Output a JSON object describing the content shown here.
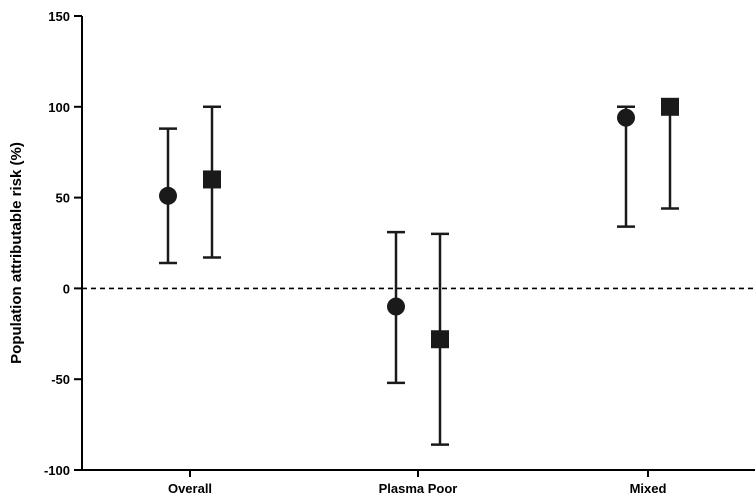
{
  "chart_data": {
    "type": "scatter",
    "title": "",
    "xlabel": "",
    "ylabel": "Population attributable risk (%)",
    "ylim": [
      -100,
      150
    ],
    "yticks": [
      150,
      100,
      50,
      0,
      -50,
      -100
    ],
    "categories": [
      "Overall",
      "Plasma Poor",
      "Mixed"
    ],
    "reference_line": {
      "y": 0,
      "style": "dashed"
    },
    "grid": false,
    "series": [
      {
        "marker": "circle",
        "color": "#1a1a1a",
        "points": [
          {
            "category": "Overall",
            "value": 51,
            "lower": 14,
            "upper": 88
          },
          {
            "category": "Plasma Poor",
            "value": -10,
            "lower": -52,
            "upper": 31
          },
          {
            "category": "Mixed",
            "value": 94,
            "lower": 34,
            "upper": 100
          }
        ]
      },
      {
        "marker": "square",
        "color": "#1a1a1a",
        "points": [
          {
            "category": "Overall",
            "value": 60,
            "lower": 17,
            "upper": 100
          },
          {
            "category": "Plasma Poor",
            "value": -28,
            "lower": -86,
            "upper": 30
          },
          {
            "category": "Mixed",
            "value": 100,
            "lower": 44,
            "upper": 100
          }
        ]
      }
    ]
  }
}
